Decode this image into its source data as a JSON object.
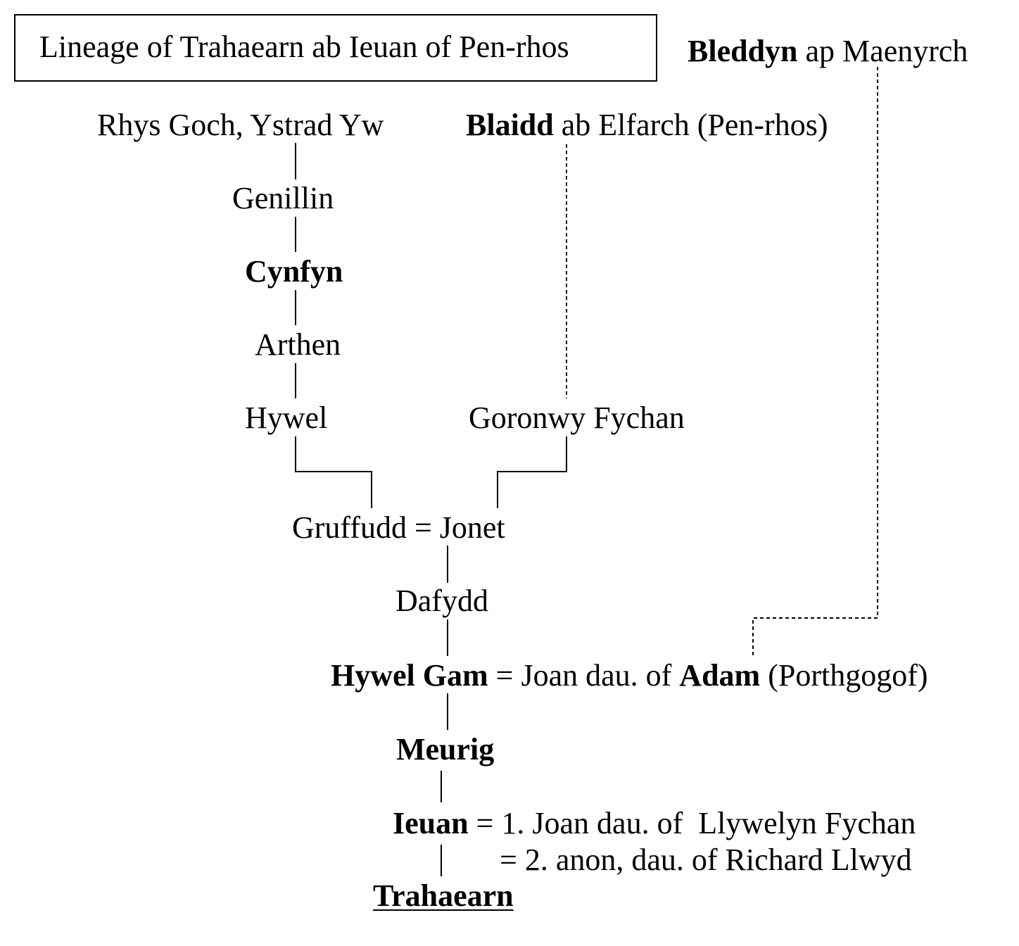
{
  "title": "Lineage of Trahaearn ab Ieuan of Pen-rhos",
  "people": {
    "bleddyn": {
      "bold": "Bleddyn",
      "rest": " ap Maenyrch"
    },
    "rhys_goch": "Rhys Goch, Ystrad Yw",
    "blaidd": {
      "bold": "Blaidd",
      "rest": " ab Elfarch (Pen-rhos)"
    },
    "genillin": "Genillin",
    "cynfyn": "Cynfyn",
    "arthen": "Arthen",
    "hywel": "Hywel",
    "goronwy": "Goronwy Fychan",
    "gruffudd_jonet": "Gruffudd = Jonet",
    "dafydd": "Dafydd",
    "hywel_gam": {
      "bold1": "Hywel Gam",
      "mid": " = Joan dau. of ",
      "bold2": "Adam",
      "rest": " (Porthgogof)"
    },
    "meurig": "Meurig",
    "ieuan": {
      "bold": "Ieuan",
      "rest": " = 1. Joan dau. of  Llywelyn Fychan"
    },
    "ieuan_second": "= 2. anon, dau. of Richard Llwyd",
    "trahaearn": "Trahaearn"
  }
}
